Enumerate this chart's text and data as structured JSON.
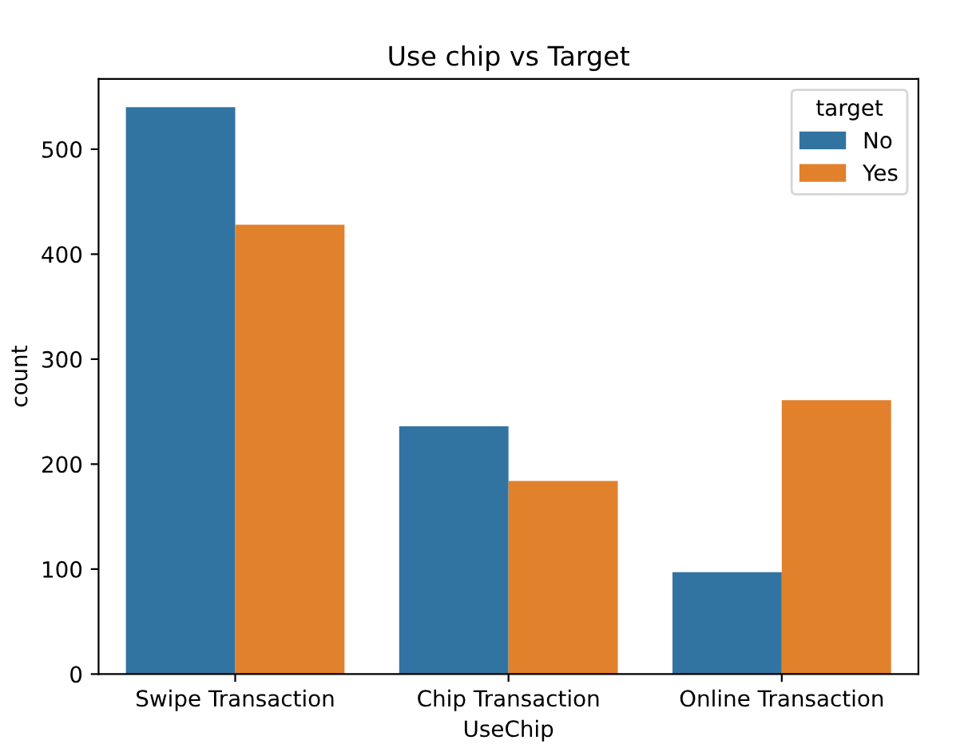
{
  "chart_data": {
    "type": "bar",
    "title": "Use chip vs Target",
    "xlabel": "UseChip",
    "ylabel": "count",
    "legend_title": "target",
    "legend": "top right",
    "categories": [
      "Swipe Transaction",
      "Chip Transaction",
      "Online Transaction"
    ],
    "series": [
      {
        "name": "No",
        "color": "#3274a1",
        "values": [
          540,
          236,
          97
        ]
      },
      {
        "name": "Yes",
        "color": "#e1812c",
        "values": [
          428,
          184,
          261
        ]
      }
    ],
    "ylim": [
      0,
      567
    ],
    "yticks": [
      0,
      100,
      200,
      300,
      400,
      500
    ],
    "grid": false
  }
}
